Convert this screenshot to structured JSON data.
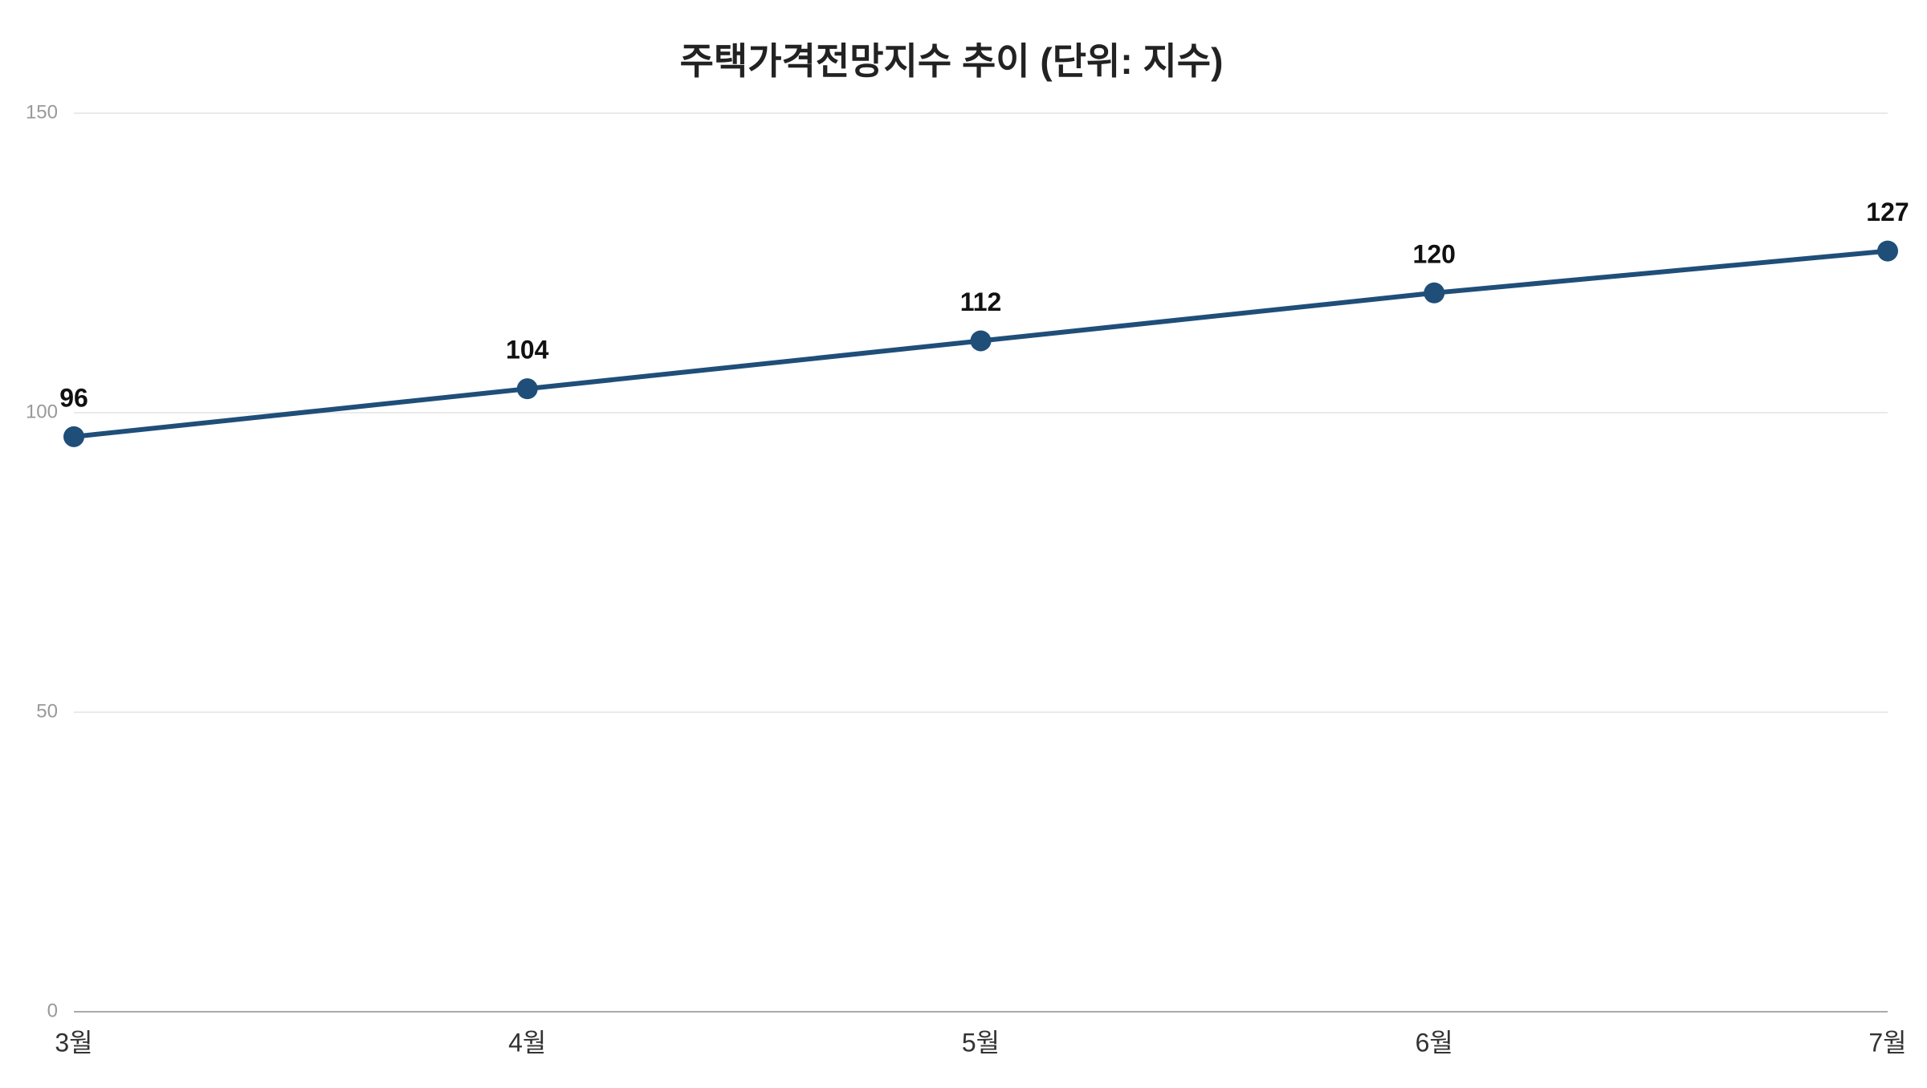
{
  "chart_data": {
    "type": "line",
    "title": "주택가격전망지수 추이 (단위: 지수)",
    "categories": [
      "3월",
      "4월",
      "5월",
      "6월",
      "7월"
    ],
    "values": [
      96,
      104,
      112,
      120,
      127
    ],
    "color": "#1f4e79",
    "ylim": [
      0,
      150
    ],
    "yticks": [
      0,
      50,
      100,
      150
    ],
    "grid": true
  }
}
